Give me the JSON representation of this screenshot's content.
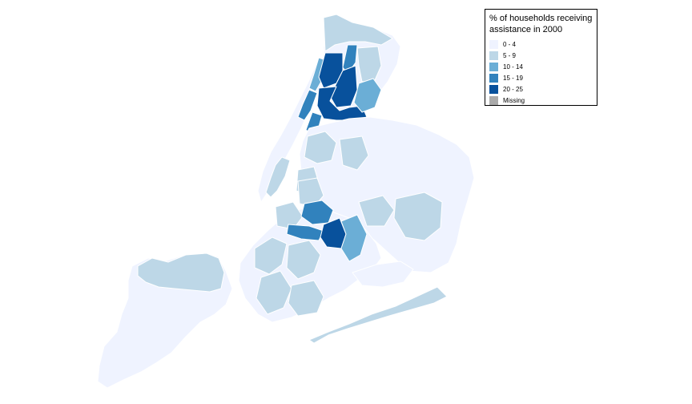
{
  "legend": {
    "title_line1": "% of households receiving",
    "title_line2": "assistance in 2000",
    "classes": [
      {
        "label": "0 - 4",
        "color": "#eff3ff"
      },
      {
        "label": "5 - 9",
        "color": "#bdd7e7"
      },
      {
        "label": "10 - 14",
        "color": "#6baed6"
      },
      {
        "label": "15 - 19",
        "color": "#3182bd"
      },
      {
        "label": "20 - 25",
        "color": "#08519c"
      },
      {
        "label": "Missing",
        "color": "#aaaaaa"
      }
    ]
  },
  "map": {
    "boundary_color": "#ffffff",
    "areas": [
      {
        "name": "staten-island",
        "cls": "0 - 4"
      },
      {
        "name": "staten-island-north-shore",
        "cls": "5 - 9"
      },
      {
        "name": "bronx-riverdale",
        "cls": "5 - 9"
      },
      {
        "name": "bronx-south-1",
        "cls": "20 - 25"
      },
      {
        "name": "bronx-south-2",
        "cls": "20 - 25"
      },
      {
        "name": "bronx-south-3",
        "cls": "20 - 25"
      },
      {
        "name": "bronx-center",
        "cls": "15 - 19"
      },
      {
        "name": "bronx-parkchester",
        "cls": "10 - 14"
      },
      {
        "name": "harlem-east",
        "cls": "15 - 19"
      },
      {
        "name": "harlem-central",
        "cls": "15 - 19"
      },
      {
        "name": "washington-heights",
        "cls": "10 - 14"
      },
      {
        "name": "brooklyn-bed-stuy",
        "cls": "15 - 19"
      },
      {
        "name": "brooklyn-brownsville",
        "cls": "20 - 25"
      },
      {
        "name": "brooklyn-east-new-york",
        "cls": "10 - 14"
      },
      {
        "name": "brooklyn-crown-heights",
        "cls": "15 - 19"
      }
    ]
  }
}
